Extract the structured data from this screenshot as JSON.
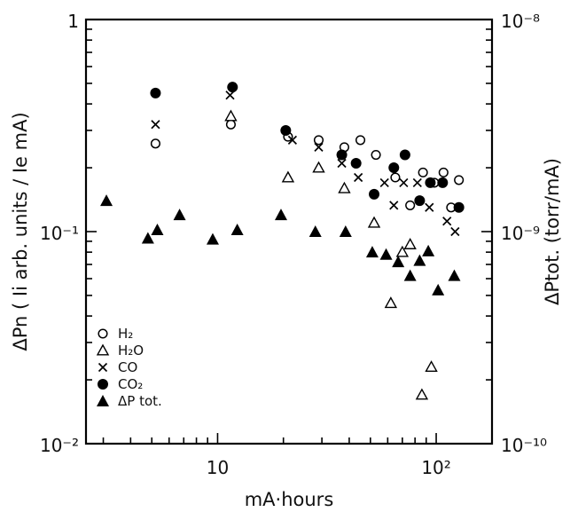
{
  "chart_data": {
    "type": "scatter",
    "title": "",
    "xlabel": "mA·hours",
    "ylabel_left": "ΔPn ( Ii arb. units / Ie mA)",
    "ylabel_right": "ΔPtot. (torr/mA)",
    "x_scale": "log",
    "y_scale": "log",
    "xlim": [
      2.5,
      180
    ],
    "ylim_left": [
      0.01,
      1
    ],
    "ylim_right": [
      1e-10,
      1e-08
    ],
    "grid": false,
    "legend_position": "bottom-left",
    "tick_labels": {
      "x": [
        {
          "value": 10,
          "text": "10"
        },
        {
          "value": 100,
          "text": "10²"
        }
      ],
      "left": [
        {
          "value": 1,
          "text": "1"
        },
        {
          "value": 0.1,
          "text": "10⁻¹"
        },
        {
          "value": 0.01,
          "text": "10⁻²"
        }
      ],
      "right": [
        {
          "value": 1e-08,
          "text": "10⁻⁸"
        },
        {
          "value": 1e-09,
          "text": "10⁻⁹"
        },
        {
          "value": 1e-10,
          "text": "10⁻¹⁰"
        }
      ]
    },
    "series": [
      {
        "name": "H₂",
        "marker": "open-circle",
        "points": [
          [
            5.2,
            0.26
          ],
          [
            11.5,
            0.32
          ],
          [
            21,
            0.28
          ],
          [
            29,
            0.27
          ],
          [
            38,
            0.25
          ],
          [
            45,
            0.27
          ],
          [
            53,
            0.23
          ],
          [
            65,
            0.18
          ],
          [
            76,
            0.133
          ],
          [
            87,
            0.19
          ],
          [
            98,
            0.17
          ],
          [
            108,
            0.19
          ],
          [
            117,
            0.13
          ],
          [
            127,
            0.175
          ]
        ]
      },
      {
        "name": "H₂O",
        "marker": "open-triangle",
        "points": [
          [
            11.5,
            0.35
          ],
          [
            21,
            0.18
          ],
          [
            29,
            0.2
          ],
          [
            38,
            0.16
          ],
          [
            52,
            0.11
          ],
          [
            62,
            0.046
          ],
          [
            70,
            0.08
          ],
          [
            76,
            0.087
          ],
          [
            86,
            0.017
          ],
          [
            95,
            0.023
          ]
        ]
      },
      {
        "name": "CO",
        "marker": "x",
        "points": [
          [
            5.2,
            0.32
          ],
          [
            11.4,
            0.44
          ],
          [
            22,
            0.27
          ],
          [
            29,
            0.25
          ],
          [
            37,
            0.21
          ],
          [
            44,
            0.18
          ],
          [
            58,
            0.17
          ],
          [
            64,
            0.133
          ],
          [
            71,
            0.17
          ],
          [
            82,
            0.17
          ],
          [
            93,
            0.13
          ],
          [
            112,
            0.112
          ],
          [
            122,
            0.1
          ]
        ]
      },
      {
        "name": "CO₂",
        "marker": "filled-circle",
        "points": [
          [
            5.2,
            0.45
          ],
          [
            11.7,
            0.48
          ],
          [
            20.5,
            0.3
          ],
          [
            37,
            0.23
          ],
          [
            43,
            0.21
          ],
          [
            52,
            0.15
          ],
          [
            64,
            0.2
          ],
          [
            72,
            0.23
          ],
          [
            84,
            0.14
          ],
          [
            94,
            0.17
          ],
          [
            107,
            0.17
          ],
          [
            127,
            0.13
          ]
        ]
      },
      {
        "name": "ΔP tot.",
        "marker": "filled-triangle",
        "axis": "right",
        "points": [
          [
            3.1,
            1.4e-09
          ],
          [
            4.8,
            9.3e-10
          ],
          [
            5.3,
            1.02e-09
          ],
          [
            6.7,
            1.2e-09
          ],
          [
            9.5,
            9.2e-10
          ],
          [
            12.3,
            1.02e-09
          ],
          [
            19.5,
            1.2e-09
          ],
          [
            28,
            1e-09
          ],
          [
            38.5,
            1e-09
          ],
          [
            51,
            8e-10
          ],
          [
            59,
            7.8e-10
          ],
          [
            67,
            7.2e-10
          ],
          [
            76,
            6.2e-10
          ],
          [
            84,
            7.3e-10
          ],
          [
            92,
            8.1e-10
          ],
          [
            102,
            5.3e-10
          ],
          [
            121,
            6.2e-10
          ]
        ]
      }
    ]
  }
}
